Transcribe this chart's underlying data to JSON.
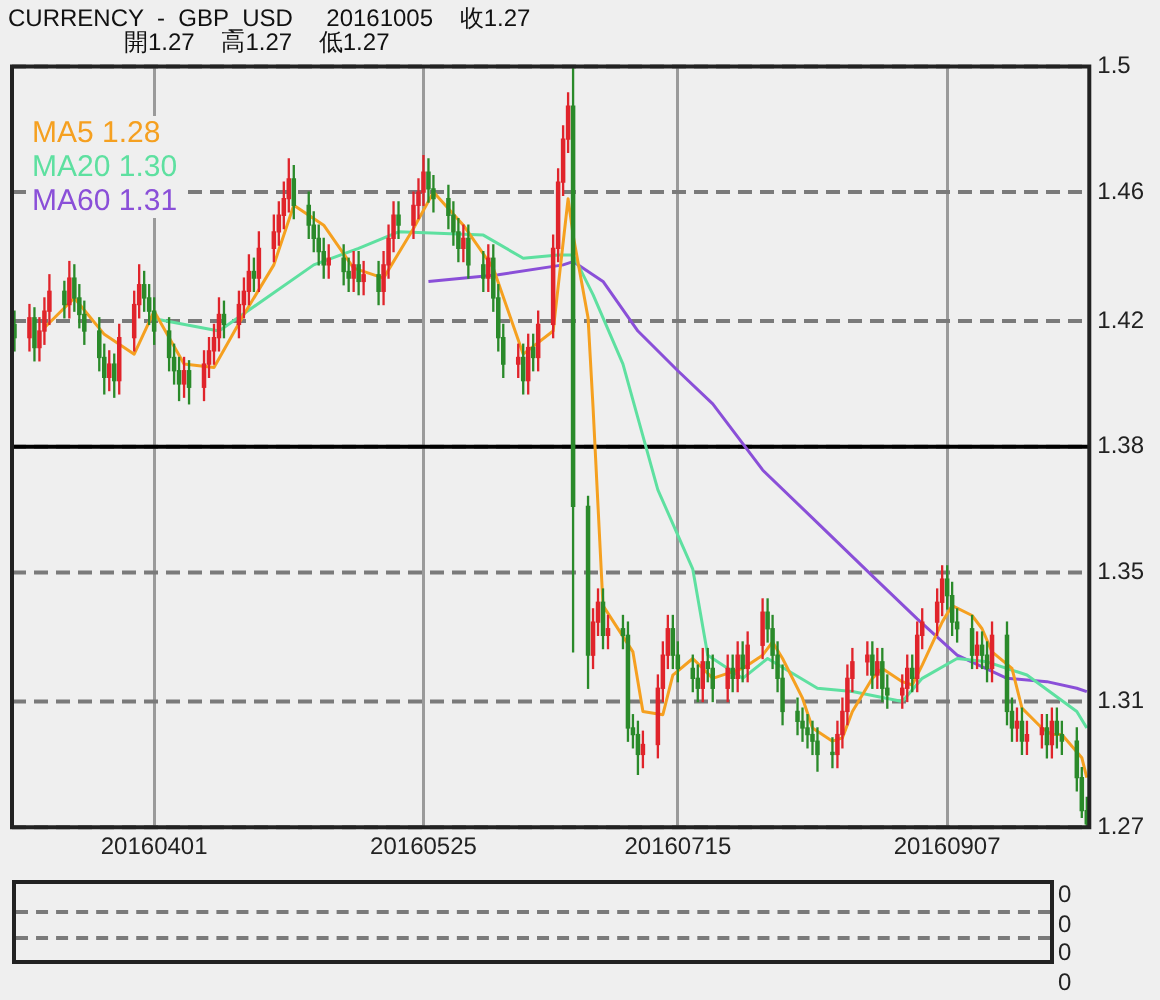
{
  "chart_data": [
    {
      "type": "candlestick",
      "title": "CURRENCY  -  GBP_USD     20161005    收1.27",
      "subtitle": "開1.27    高1.27    低1.27",
      "x": [
        "2016-03-04",
        "2016-03-07",
        "2016-03-08",
        "2016-03-09",
        "2016-03-10",
        "2016-03-11",
        "2016-03-14",
        "2016-03-15",
        "2016-03-16",
        "2016-03-17",
        "2016-03-18",
        "2016-03-21",
        "2016-03-22",
        "2016-03-23",
        "2016-03-24",
        "2016-03-25",
        "2016-03-28",
        "2016-03-29",
        "2016-03-30",
        "2016-03-31",
        "2016-04-01",
        "2016-04-04",
        "2016-04-05",
        "2016-04-06",
        "2016-04-07",
        "2016-04-08",
        "2016-04-11",
        "2016-04-12",
        "2016-04-13",
        "2016-04-14",
        "2016-04-15",
        "2016-04-18",
        "2016-04-19",
        "2016-04-20",
        "2016-04-21",
        "2016-04-22",
        "2016-04-25",
        "2016-04-26",
        "2016-04-27",
        "2016-04-28",
        "2016-04-29",
        "2016-05-02",
        "2016-05-03",
        "2016-05-04",
        "2016-05-05",
        "2016-05-06",
        "2016-05-09",
        "2016-05-10",
        "2016-05-11",
        "2016-05-12",
        "2016-05-13",
        "2016-05-16",
        "2016-05-17",
        "2016-05-18",
        "2016-05-19",
        "2016-05-20",
        "2016-05-23",
        "2016-05-24",
        "2016-05-25",
        "2016-05-26",
        "2016-05-27",
        "2016-05-30",
        "2016-05-31",
        "2016-06-01",
        "2016-06-02",
        "2016-06-03",
        "2016-06-06",
        "2016-06-07",
        "2016-06-08",
        "2016-06-09",
        "2016-06-10",
        "2016-06-13",
        "2016-06-14",
        "2016-06-15",
        "2016-06-16",
        "2016-06-17",
        "2016-06-20",
        "2016-06-21",
        "2016-06-22",
        "2016-06-23",
        "2016-06-24",
        "2016-06-27",
        "2016-06-28",
        "2016-06-29",
        "2016-06-30",
        "2016-07-01",
        "2016-07-04",
        "2016-07-05",
        "2016-07-06",
        "2016-07-07",
        "2016-07-08",
        "2016-07-11",
        "2016-07-12",
        "2016-07-13",
        "2016-07-14",
        "2016-07-15",
        "2016-07-18",
        "2016-07-19",
        "2016-07-20",
        "2016-07-21",
        "2016-07-22",
        "2016-07-25",
        "2016-07-26",
        "2016-07-27",
        "2016-07-28",
        "2016-07-29",
        "2016-08-01",
        "2016-08-02",
        "2016-08-03",
        "2016-08-04",
        "2016-08-05",
        "2016-08-08",
        "2016-08-09",
        "2016-08-10",
        "2016-08-11",
        "2016-08-12",
        "2016-08-15",
        "2016-08-16",
        "2016-08-17",
        "2016-08-18",
        "2016-08-19",
        "2016-08-22",
        "2016-08-23",
        "2016-08-24",
        "2016-08-25",
        "2016-08-26",
        "2016-08-29",
        "2016-08-30",
        "2016-08-31",
        "2016-09-01",
        "2016-09-02",
        "2016-09-05",
        "2016-09-06",
        "2016-09-07",
        "2016-09-08",
        "2016-09-09",
        "2016-09-12",
        "2016-09-13",
        "2016-09-14",
        "2016-09-15",
        "2016-09-16",
        "2016-09-19",
        "2016-09-20",
        "2016-09-21",
        "2016-09-22",
        "2016-09-23",
        "2016-09-26",
        "2016-09-27",
        "2016-09-28",
        "2016-09-29",
        "2016-09-30",
        "2016-10-03",
        "2016-10-04",
        "2016-10-05"
      ],
      "ohlc": [
        [
          1.422,
          1.426,
          1.414,
          1.418
        ],
        [
          1.418,
          1.428,
          1.414,
          1.424
        ],
        [
          1.424,
          1.427,
          1.411,
          1.415
        ],
        [
          1.415,
          1.424,
          1.411,
          1.42
        ],
        [
          1.42,
          1.43,
          1.416,
          1.426
        ],
        [
          1.426,
          1.437,
          1.422,
          1.432
        ],
        [
          1.432,
          1.435,
          1.424,
          1.428
        ],
        [
          1.428,
          1.441,
          1.424,
          1.436
        ],
        [
          1.436,
          1.44,
          1.426,
          1.43
        ],
        [
          1.43,
          1.434,
          1.421,
          1.425
        ],
        [
          1.425,
          1.429,
          1.416,
          1.42
        ],
        [
          1.42,
          1.424,
          1.408,
          1.412
        ],
        [
          1.412,
          1.416,
          1.401,
          1.406
        ],
        [
          1.406,
          1.414,
          1.402,
          1.41
        ],
        [
          1.41,
          1.413,
          1.4,
          1.405
        ],
        [
          1.405,
          1.422,
          1.401,
          1.418
        ],
        [
          1.418,
          1.432,
          1.414,
          1.428
        ],
        [
          1.428,
          1.44,
          1.424,
          1.434
        ],
        [
          1.434,
          1.438,
          1.426,
          1.43
        ],
        [
          1.43,
          1.434,
          1.422,
          1.426
        ],
        [
          1.426,
          1.43,
          1.416,
          1.42
        ],
        [
          1.42,
          1.424,
          1.408,
          1.412
        ],
        [
          1.412,
          1.416,
          1.404,
          1.408
        ],
        [
          1.408,
          1.412,
          1.399,
          1.404
        ],
        [
          1.404,
          1.412,
          1.4,
          1.408
        ],
        [
          1.408,
          1.411,
          1.398,
          1.403
        ],
        [
          1.403,
          1.414,
          1.399,
          1.41
        ],
        [
          1.41,
          1.418,
          1.406,
          1.414
        ],
        [
          1.414,
          1.422,
          1.41,
          1.418
        ],
        [
          1.418,
          1.43,
          1.414,
          1.425
        ],
        [
          1.425,
          1.429,
          1.418,
          1.422
        ],
        [
          1.422,
          1.432,
          1.418,
          1.428
        ],
        [
          1.428,
          1.436,
          1.424,
          1.432
        ],
        [
          1.432,
          1.443,
          1.428,
          1.438
        ],
        [
          1.438,
          1.442,
          1.432,
          1.436
        ],
        [
          1.436,
          1.45,
          1.432,
          1.445
        ],
        [
          1.445,
          1.455,
          1.441,
          1.45
        ],
        [
          1.45,
          1.459,
          1.446,
          1.455
        ],
        [
          1.455,
          1.465,
          1.451,
          1.46
        ],
        [
          1.46,
          1.472,
          1.456,
          1.466
        ],
        [
          1.466,
          1.47,
          1.454,
          1.458
        ],
        [
          1.458,
          1.462,
          1.448,
          1.452
        ],
        [
          1.452,
          1.456,
          1.444,
          1.448
        ],
        [
          1.448,
          1.452,
          1.44,
          1.444
        ],
        [
          1.444,
          1.448,
          1.436,
          1.44
        ],
        [
          1.44,
          1.446,
          1.436,
          1.442
        ],
        [
          1.442,
          1.446,
          1.434,
          1.438
        ],
        [
          1.438,
          1.442,
          1.432,
          1.436
        ],
        [
          1.436,
          1.444,
          1.432,
          1.44
        ],
        [
          1.44,
          1.444,
          1.431,
          1.435
        ],
        [
          1.435,
          1.441,
          1.431,
          1.437
        ],
        [
          1.437,
          1.441,
          1.428,
          1.432
        ],
        [
          1.432,
          1.444,
          1.428,
          1.44
        ],
        [
          1.44,
          1.452,
          1.436,
          1.448
        ],
        [
          1.448,
          1.459,
          1.444,
          1.455
        ],
        [
          1.455,
          1.459,
          1.448,
          1.452
        ],
        [
          1.452,
          1.462,
          1.448,
          1.458
        ],
        [
          1.458,
          1.466,
          1.454,
          1.462
        ],
        [
          1.462,
          1.473,
          1.458,
          1.468
        ],
        [
          1.468,
          1.472,
          1.459,
          1.463
        ],
        [
          1.463,
          1.467,
          1.456,
          1.46
        ],
        [
          1.46,
          1.464,
          1.451,
          1.455
        ],
        [
          1.455,
          1.459,
          1.446,
          1.45
        ],
        [
          1.45,
          1.454,
          1.441,
          1.445
        ],
        [
          1.445,
          1.452,
          1.441,
          1.448
        ],
        [
          1.448,
          1.452,
          1.436,
          1.44
        ],
        [
          1.44,
          1.444,
          1.432,
          1.436
        ],
        [
          1.436,
          1.446,
          1.432,
          1.442
        ],
        [
          1.442,
          1.446,
          1.426,
          1.43
        ],
        [
          1.43,
          1.434,
          1.414,
          1.418
        ],
        [
          1.418,
          1.422,
          1.406,
          1.41
        ],
        [
          1.41,
          1.416,
          1.406,
          1.412
        ],
        [
          1.412,
          1.416,
          1.401,
          1.405
        ],
        [
          1.405,
          1.419,
          1.401,
          1.415
        ],
        [
          1.415,
          1.419,
          1.408,
          1.412
        ],
        [
          1.412,
          1.426,
          1.408,
          1.422
        ],
        [
          1.422,
          1.449,
          1.418,
          1.445
        ],
        [
          1.445,
          1.469,
          1.441,
          1.465
        ],
        [
          1.465,
          1.482,
          1.461,
          1.478
        ],
        [
          1.478,
          1.492,
          1.474,
          1.488
        ],
        [
          1.488,
          1.5,
          1.323,
          1.367
        ],
        [
          1.367,
          1.37,
          1.312,
          1.322
        ],
        [
          1.322,
          1.336,
          1.318,
          1.332
        ],
        [
          1.332,
          1.342,
          1.328,
          1.338
        ],
        [
          1.338,
          1.342,
          1.324,
          1.328
        ],
        [
          1.328,
          1.334,
          1.324,
          1.33
        ],
        [
          1.33,
          1.334,
          1.324,
          1.328
        ],
        [
          1.328,
          1.332,
          1.296,
          1.3
        ],
        [
          1.3,
          1.304,
          1.294,
          1.298
        ],
        [
          1.298,
          1.302,
          1.286,
          1.292
        ],
        [
          1.292,
          1.299,
          1.288,
          1.295
        ],
        [
          1.295,
          1.316,
          1.291,
          1.312
        ],
        [
          1.312,
          1.326,
          1.308,
          1.322
        ],
        [
          1.322,
          1.334,
          1.318,
          1.33
        ],
        [
          1.33,
          1.334,
          1.318,
          1.322
        ],
        [
          1.322,
          1.326,
          1.314,
          1.318
        ],
        [
          1.318,
          1.322,
          1.311,
          1.315
        ],
        [
          1.315,
          1.319,
          1.308,
          1.312
        ],
        [
          1.312,
          1.324,
          1.308,
          1.32
        ],
        [
          1.32,
          1.324,
          1.314,
          1.318
        ],
        [
          1.318,
          1.322,
          1.308,
          1.312
        ],
        [
          1.312,
          1.322,
          1.308,
          1.318
        ],
        [
          1.318,
          1.322,
          1.311,
          1.315
        ],
        [
          1.315,
          1.326,
          1.311,
          1.322
        ],
        [
          1.322,
          1.326,
          1.314,
          1.318
        ],
        [
          1.318,
          1.329,
          1.314,
          1.325
        ],
        [
          1.325,
          1.339,
          1.321,
          1.335
        ],
        [
          1.335,
          1.339,
          1.326,
          1.33
        ],
        [
          1.33,
          1.334,
          1.318,
          1.322
        ],
        [
          1.322,
          1.326,
          1.311,
          1.315
        ],
        [
          1.315,
          1.319,
          1.301,
          1.305
        ],
        [
          1.305,
          1.309,
          1.298,
          1.302
        ],
        [
          1.302,
          1.306,
          1.296,
          1.3
        ],
        [
          1.3,
          1.304,
          1.294,
          1.298
        ],
        [
          1.298,
          1.302,
          1.292,
          1.296
        ],
        [
          1.296,
          1.3,
          1.287,
          1.292
        ],
        [
          1.292,
          1.297,
          1.288,
          1.292
        ],
        [
          1.292,
          1.302,
          1.288,
          1.298
        ],
        [
          1.298,
          1.309,
          1.294,
          1.305
        ],
        [
          1.305,
          1.319,
          1.301,
          1.315
        ],
        [
          1.315,
          1.324,
          1.311,
          1.32
        ],
        [
          1.32,
          1.326,
          1.316,
          1.322
        ],
        [
          1.322,
          1.326,
          1.312,
          1.316
        ],
        [
          1.316,
          1.324,
          1.312,
          1.32
        ],
        [
          1.32,
          1.324,
          1.308,
          1.312
        ],
        [
          1.312,
          1.316,
          1.306,
          1.31
        ],
        [
          1.31,
          1.316,
          1.306,
          1.312
        ],
        [
          1.312,
          1.322,
          1.308,
          1.318
        ],
        [
          1.318,
          1.322,
          1.311,
          1.315
        ],
        [
          1.315,
          1.332,
          1.311,
          1.328
        ],
        [
          1.328,
          1.336,
          1.324,
          1.332
        ],
        [
          1.332,
          1.342,
          1.328,
          1.338
        ],
        [
          1.338,
          1.349,
          1.334,
          1.345
        ],
        [
          1.345,
          1.349,
          1.336,
          1.34
        ],
        [
          1.34,
          1.344,
          1.328,
          1.332
        ],
        [
          1.332,
          1.336,
          1.326,
          1.33
        ],
        [
          1.33,
          1.334,
          1.318,
          1.322
        ],
        [
          1.322,
          1.329,
          1.318,
          1.325
        ],
        [
          1.325,
          1.329,
          1.318,
          1.322
        ],
        [
          1.322,
          1.326,
          1.314,
          1.318
        ],
        [
          1.318,
          1.332,
          1.314,
          1.328
        ],
        [
          1.328,
          1.332,
          1.301,
          1.305
        ],
        [
          1.305,
          1.309,
          1.296,
          1.3
        ],
        [
          1.3,
          1.306,
          1.296,
          1.302
        ],
        [
          1.302,
          1.306,
          1.292,
          1.296
        ],
        [
          1.296,
          1.302,
          1.292,
          1.298
        ],
        [
          1.298,
          1.304,
          1.294,
          1.3
        ],
        [
          1.3,
          1.304,
          1.291,
          1.295
        ],
        [
          1.295,
          1.306,
          1.291,
          1.302
        ],
        [
          1.302,
          1.306,
          1.294,
          1.298
        ],
        [
          1.298,
          1.302,
          1.292,
          1.296
        ],
        [
          1.296,
          1.3,
          1.281,
          1.285
        ],
        [
          1.285,
          1.288,
          1.273,
          1.275
        ],
        [
          1.275,
          1.279,
          1.27,
          1.271
        ]
      ],
      "colors": [
        "#2a8a2a",
        "#e0242b",
        "#2a8a2a",
        "#e0242b",
        "#e0242b",
        "#e0242b",
        "#2a8a2a",
        "#e0242b",
        "#2a8a2a",
        "#2a8a2a",
        "#2a8a2a",
        "#2a8a2a",
        "#2a8a2a",
        "#e0242b",
        "#2a8a2a",
        "#e0242b",
        "#e0242b",
        "#e0242b",
        "#2a8a2a",
        "#2a8a2a",
        "#2a8a2a",
        "#2a8a2a",
        "#2a8a2a",
        "#2a8a2a",
        "#e0242b",
        "#2a8a2a",
        "#e0242b",
        "#e0242b",
        "#e0242b",
        "#e0242b",
        "#2a8a2a",
        "#e0242b",
        "#e0242b",
        "#e0242b",
        "#2a8a2a",
        "#e0242b",
        "#e0242b",
        "#e0242b",
        "#e0242b",
        "#e0242b",
        "#2a8a2a",
        "#2a8a2a",
        "#2a8a2a",
        "#2a8a2a",
        "#2a8a2a",
        "#e0242b",
        "#2a8a2a",
        "#2a8a2a",
        "#e0242b",
        "#2a8a2a",
        "#e0242b",
        "#2a8a2a",
        "#e0242b",
        "#e0242b",
        "#e0242b",
        "#2a8a2a",
        "#e0242b",
        "#e0242b",
        "#e0242b",
        "#2a8a2a",
        "#2a8a2a",
        "#2a8a2a",
        "#2a8a2a",
        "#2a8a2a",
        "#e0242b",
        "#2a8a2a",
        "#2a8a2a",
        "#e0242b",
        "#2a8a2a",
        "#2a8a2a",
        "#2a8a2a",
        "#e0242b",
        "#2a8a2a",
        "#e0242b",
        "#2a8a2a",
        "#e0242b",
        "#e0242b",
        "#e0242b",
        "#e0242b",
        "#e0242b",
        "#2a8a2a",
        "#2a8a2a",
        "#e0242b",
        "#e0242b",
        "#2a8a2a",
        "#e0242b",
        "#2a8a2a",
        "#2a8a2a",
        "#2a8a2a",
        "#2a8a2a",
        "#e0242b",
        "#e0242b",
        "#e0242b",
        "#e0242b",
        "#2a8a2a",
        "#2a8a2a",
        "#2a8a2a",
        "#2a8a2a",
        "#e0242b",
        "#2a8a2a",
        "#2a8a2a",
        "#e0242b",
        "#2a8a2a",
        "#e0242b",
        "#2a8a2a",
        "#e0242b",
        "#e0242b",
        "#2a8a2a",
        "#2a8a2a",
        "#2a8a2a",
        "#2a8a2a",
        "#2a8a2a",
        "#2a8a2a",
        "#2a8a2a",
        "#2a8a2a",
        "#2a8a2a",
        "#2a8a2a",
        "#e0242b",
        "#e0242b",
        "#e0242b",
        "#e0242b",
        "#e0242b",
        "#2a8a2a",
        "#e0242b",
        "#2a8a2a",
        "#2a8a2a",
        "#e0242b",
        "#e0242b",
        "#2a8a2a",
        "#e0242b",
        "#e0242b",
        "#e0242b",
        "#e0242b",
        "#2a8a2a",
        "#2a8a2a",
        "#2a8a2a",
        "#2a8a2a",
        "#e0242b",
        "#2a8a2a",
        "#2a8a2a",
        "#e0242b",
        "#2a8a2a",
        "#2a8a2a",
        "#e0242b",
        "#2a8a2a",
        "#e0242b",
        "#e0242b",
        "#2a8a2a",
        "#e0242b",
        "#2a8a2a",
        "#2a8a2a",
        "#2a8a2a",
        "#2a8a2a",
        "#2a8a2a"
      ],
      "series": [
        {
          "type": "line",
          "name": "MA5 1.28",
          "color": "#f5a020",
          "x": [
            "2016-03-10",
            "2016-03-16",
            "2016-03-22",
            "2016-03-28",
            "2016-04-01",
            "2016-04-07",
            "2016-04-13",
            "2016-04-19",
            "2016-04-25",
            "2016-04-29",
            "2016-05-05",
            "2016-05-11",
            "2016-05-17",
            "2016-05-23",
            "2016-05-27",
            "2016-06-02",
            "2016-06-08",
            "2016-06-14",
            "2016-06-20",
            "2016-06-23",
            "2016-06-24",
            "2016-06-27",
            "2016-06-28",
            "2016-06-30",
            "2016-07-06",
            "2016-07-08",
            "2016-07-12",
            "2016-07-14",
            "2016-07-18",
            "2016-07-22",
            "2016-07-28",
            "2016-08-01",
            "2016-08-03",
            "2016-08-05",
            "2016-08-09",
            "2016-08-11",
            "2016-08-15",
            "2016-08-17",
            "2016-08-19",
            "2016-08-23",
            "2016-08-25",
            "2016-08-29",
            "2016-08-31",
            "2016-09-02",
            "2016-09-06",
            "2016-09-08",
            "2016-09-12",
            "2016-09-14",
            "2016-09-16",
            "2016-09-20",
            "2016-09-22",
            "2016-09-26",
            "2016-09-28",
            "2016-09-30",
            "2016-10-04",
            "2016-10-05"
          ],
          "values": [
            1.421,
            1.43,
            1.419,
            1.413,
            1.426,
            1.41,
            1.409,
            1.425,
            1.44,
            1.458,
            1.452,
            1.439,
            1.436,
            1.451,
            1.462,
            1.452,
            1.439,
            1.413,
            1.42,
            1.46,
            1.449,
            1.424,
            1.397,
            1.337,
            1.323,
            1.305,
            1.304,
            1.316,
            1.321,
            1.315,
            1.318,
            1.322,
            1.326,
            1.321,
            1.309,
            1.3,
            1.296,
            1.297,
            1.305,
            1.315,
            1.318,
            1.314,
            1.313,
            1.319,
            1.332,
            1.337,
            1.334,
            1.33,
            1.323,
            1.318,
            1.306,
            1.3,
            1.298,
            1.298,
            1.291,
            1.285
          ]
        },
        {
          "type": "line",
          "name": "MA20 1.30",
          "color": "#5ee0a0",
          "x": [
            "2016-03-31",
            "2016-04-14",
            "2016-05-03",
            "2016-05-12",
            "2016-05-20",
            "2016-06-06",
            "2016-06-14",
            "2016-06-21",
            "2016-06-24",
            "2016-06-28",
            "2016-07-04",
            "2016-07-11",
            "2016-07-18",
            "2016-07-21",
            "2016-07-28",
            "2016-08-02",
            "2016-08-12",
            "2016-08-19",
            "2016-08-29",
            "2016-09-02",
            "2016-09-09",
            "2016-09-15",
            "2016-09-23",
            "2016-10-03",
            "2016-10-05"
          ],
          "values": [
            1.424,
            1.42,
            1.44,
            1.445,
            1.45,
            1.449,
            1.442,
            1.443,
            1.443,
            1.431,
            1.41,
            1.372,
            1.348,
            1.322,
            1.315,
            1.321,
            1.312,
            1.311,
            1.308,
            1.315,
            1.321,
            1.32,
            1.316,
            1.305,
            1.3
          ]
        },
        {
          "type": "line",
          "name": "MA60 1.31",
          "color": "#8a4fd8",
          "x": [
            "2016-05-26",
            "2016-06-09",
            "2016-06-22",
            "2016-06-24",
            "2016-06-30",
            "2016-07-07",
            "2016-07-15",
            "2016-07-22",
            "2016-08-01",
            "2016-08-12",
            "2016-08-23",
            "2016-09-01",
            "2016-09-09",
            "2016-09-19",
            "2016-09-27",
            "2016-10-03",
            "2016-10-05"
          ],
          "values": [
            1.435,
            1.437,
            1.44,
            1.441,
            1.435,
            1.42,
            1.408,
            1.398,
            1.378,
            1.362,
            1.346,
            1.333,
            1.322,
            1.315,
            1.314,
            1.312,
            1.311
          ]
        }
      ],
      "xlim": [
        "2016-03-04",
        "2016-10-05"
      ],
      "xticks": [
        {
          "value": "2016-04-01",
          "label": "20160401"
        },
        {
          "value": "2016-05-25",
          "label": "20160525"
        },
        {
          "value": "2016-07-15",
          "label": "20160715"
        },
        {
          "value": "2016-09-07",
          "label": "20160907"
        }
      ],
      "ylim": [
        1.27,
        1.5
      ],
      "yticks": [
        1.27,
        {
          "value": 1.308,
          "label": "1.31"
        },
        {
          "value": 1.347,
          "label": "1.35"
        },
        {
          "value": 1.385,
          "label": "1.38"
        },
        {
          "value": 1.423,
          "label": "1.42"
        },
        {
          "value": 1.462,
          "label": "1.46"
        },
        1.5
      ],
      "grid": true,
      "legend": "top left",
      "ref_lines": [
        {
          "axis": "y",
          "value": 1.385,
          "color": "#000000"
        }
      ]
    },
    {
      "type": "other",
      "annotations": [
        "0",
        "0",
        "0",
        "0"
      ]
    }
  ]
}
